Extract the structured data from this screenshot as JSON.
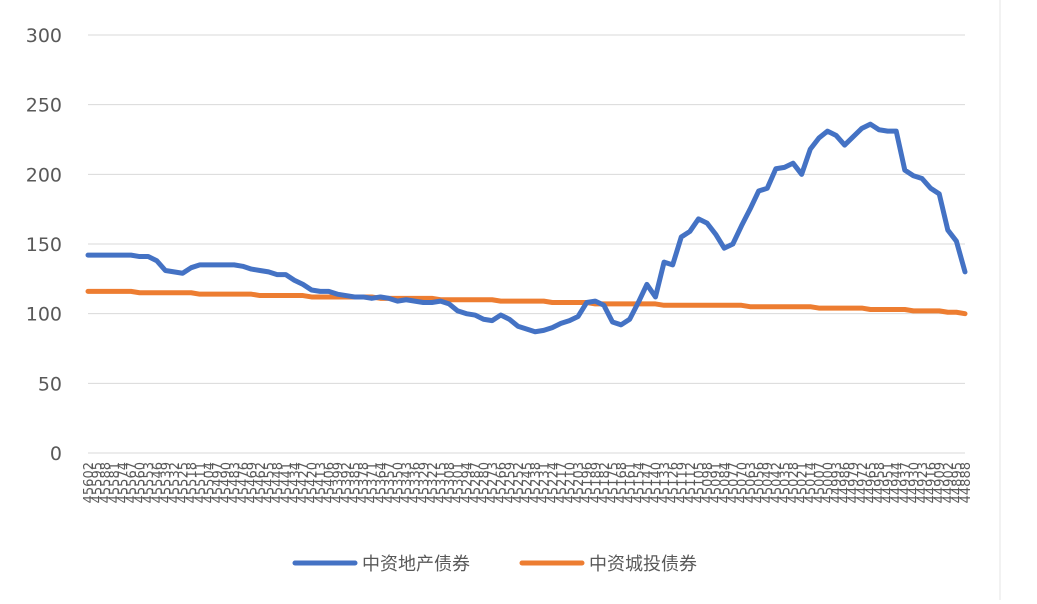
{
  "chart_data": {
    "type": "line",
    "categories": [
      "45602",
      "45595",
      "45588",
      "45581",
      "45574",
      "45567",
      "45560",
      "45553",
      "45546",
      "45539",
      "45532",
      "45525",
      "45518",
      "45511",
      "45504",
      "45497",
      "45490",
      "45483",
      "45476",
      "45469",
      "45462",
      "45455",
      "45448",
      "45441",
      "45434",
      "45427",
      "45420",
      "45413",
      "45406",
      "45399",
      "45392",
      "45385",
      "45378",
      "45371",
      "45364",
      "45357",
      "45350",
      "45343",
      "45336",
      "45329",
      "45322",
      "45315",
      "45308",
      "45301",
      "45294",
      "45287",
      "45280",
      "45273",
      "45266",
      "45259",
      "45252",
      "45245",
      "45238",
      "45231",
      "45224",
      "45217",
      "45210",
      "45203",
      "45196",
      "45189",
      "45182",
      "45175",
      "45168",
      "45161",
      "45154",
      "45147",
      "45140",
      "45133",
      "45126",
      "45119",
      "45112",
      "45105",
      "45098",
      "45091",
      "45084",
      "45077",
      "45070",
      "45063",
      "45056",
      "45049",
      "45042",
      "45035",
      "45028",
      "45021",
      "45014",
      "45007",
      "45000",
      "44993",
      "44986",
      "44979",
      "44972",
      "44965",
      "44958",
      "44951",
      "44944",
      "44937",
      "44930",
      "44923",
      "44916",
      "44909",
      "44902",
      "44895",
      "44888"
    ],
    "series": [
      {
        "name": "中资地产债券",
        "color": "#4472c4",
        "values": [
          142,
          142,
          142,
          142,
          142,
          142,
          141,
          141,
          138,
          131,
          130,
          129,
          133,
          135,
          135,
          135,
          135,
          135,
          134,
          132,
          131,
          130,
          128,
          128,
          124,
          121,
          117,
          116,
          116,
          114,
          113,
          112,
          112,
          111,
          112,
          111,
          109,
          110,
          109,
          108,
          108,
          109,
          107,
          102,
          100,
          99,
          96,
          95,
          99,
          96,
          91,
          89,
          87,
          88,
          90,
          93,
          95,
          98,
          108,
          109,
          106,
          94,
          92,
          96,
          108,
          121,
          112,
          137,
          135,
          155,
          159,
          168,
          165,
          157,
          147,
          150,
          163,
          175,
          188,
          190,
          204,
          205,
          208,
          200,
          218,
          226,
          231,
          228,
          221,
          227,
          233,
          236,
          232,
          231,
          231,
          203,
          199,
          197,
          190,
          186,
          160,
          152,
          130
        ]
      },
      {
        "name": "中资城投债券",
        "color": "#ed7d31",
        "values": [
          116,
          116,
          116,
          116,
          116,
          116,
          115,
          115,
          115,
          115,
          115,
          115,
          115,
          114,
          114,
          114,
          114,
          114,
          114,
          114,
          113,
          113,
          113,
          113,
          113,
          113,
          112,
          112,
          112,
          112,
          112,
          112,
          112,
          112,
          111,
          111,
          111,
          111,
          111,
          111,
          111,
          110,
          110,
          110,
          110,
          110,
          110,
          110,
          109,
          109,
          109,
          109,
          109,
          109,
          108,
          108,
          108,
          108,
          108,
          107,
          107,
          107,
          107,
          107,
          107,
          107,
          107,
          106,
          106,
          106,
          106,
          106,
          106,
          106,
          106,
          106,
          106,
          105,
          105,
          105,
          105,
          105,
          105,
          105,
          105,
          104,
          104,
          104,
          104,
          104,
          104,
          103,
          103,
          103,
          103,
          103,
          102,
          102,
          102,
          102,
          101,
          101,
          100
        ]
      }
    ],
    "ylim": [
      0,
      300
    ],
    "yticks": [
      0,
      50,
      100,
      150,
      200,
      250,
      300
    ],
    "grid": true,
    "legend": "bottom"
  }
}
